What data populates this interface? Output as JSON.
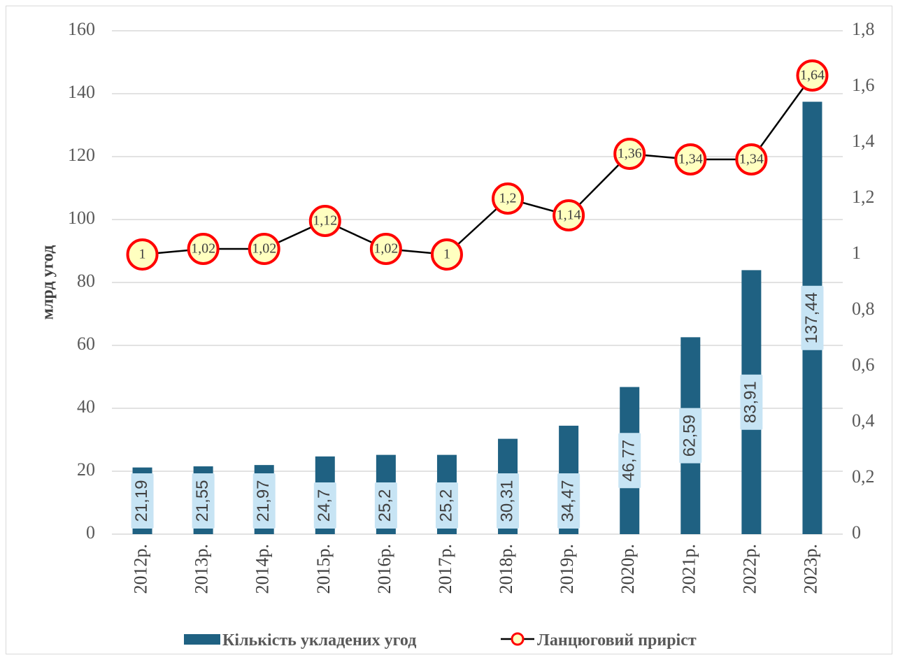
{
  "chart_data": {
    "type": "bar",
    "categories": [
      "2012р.",
      "2013р.",
      "2014р.",
      "2015р.",
      "2016р.",
      "2017р.",
      "2018р.",
      "2019р.",
      "2020р.",
      "2021р.",
      "2022р.",
      "2023р."
    ],
    "series": [
      {
        "name": "Кількість укладених угод",
        "type": "bar",
        "axis": "left",
        "values": [
          21.19,
          21.55,
          21.97,
          24.7,
          25.2,
          25.2,
          30.31,
          34.47,
          46.77,
          62.59,
          83.91,
          137.44
        ],
        "labels": [
          "21,19",
          "21,55",
          "21,97",
          "24,7",
          "25,2",
          "25,2",
          "30,31",
          "34,47",
          "46,77",
          "62,59",
          "83,91",
          "137,44"
        ],
        "color": "#1f6182"
      },
      {
        "name": "Ланцюговий приріст",
        "type": "line",
        "axis": "right",
        "values": [
          1,
          1.02,
          1.02,
          1.12,
          1.02,
          1,
          1.2,
          1.14,
          1.36,
          1.34,
          1.34,
          1.64
        ],
        "labels": [
          "1",
          "1,02",
          "1,02",
          "1,12",
          "1,02",
          "1",
          "1,2",
          "1,14",
          "1,36",
          "1,34",
          "1,34",
          "1,64"
        ],
        "color": "#000000",
        "marker_fill": "#ffffc0",
        "marker_stroke": "#ff0000"
      }
    ],
    "ylabel": "млрд угод",
    "ylim": [
      0,
      160
    ],
    "y_ticks": [
      "0",
      "20",
      "40",
      "60",
      "80",
      "100",
      "120",
      "140",
      "160"
    ],
    "y2lim": [
      0,
      1.8
    ],
    "y2_ticks": [
      "0",
      "0,2",
      "0,4",
      "0,6",
      "0,8",
      "1",
      "1,2",
      "1,4",
      "1,6",
      "1,8"
    ],
    "grid": true,
    "legend_position": "bottom",
    "colors": {
      "bar": "#1f6182",
      "grid": "#d9d9d9",
      "line": "#000000",
      "marker_fill": "#ffffc0",
      "marker_stroke": "#ff0000"
    }
  }
}
